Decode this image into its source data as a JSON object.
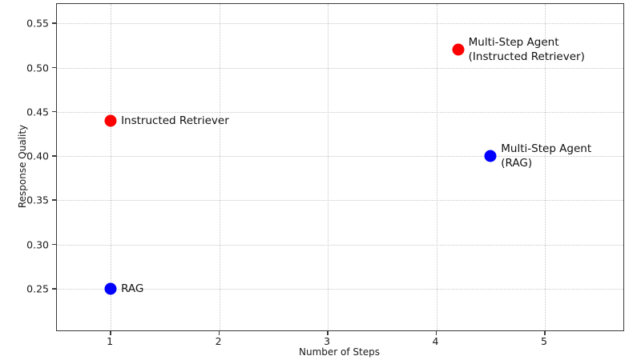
{
  "figure": {
    "background": "#ffffff",
    "spine_color": "#3a3a3a",
    "grid_color": "#c6c6c6",
    "text_color": "#1a1a1a"
  },
  "chart_data": {
    "type": "scatter",
    "title": "",
    "xlabel": "Number of Steps",
    "ylabel": "Response Quality",
    "xlim": [
      0.505,
      5.723
    ],
    "ylim": [
      0.203,
      0.572
    ],
    "x_ticks": [
      1,
      2,
      3,
      4,
      5
    ],
    "y_ticks": [
      0.55,
      0.5,
      0.45,
      0.4,
      0.35,
      0.3,
      0.25
    ],
    "grid": true,
    "grid_style": "dotted",
    "legend": "none",
    "marker_size_px": 15,
    "colors": {
      "red": "#ff0000",
      "blue": "#0000ff"
    },
    "points": [
      {
        "x": 1,
        "y": 0.44,
        "color": "red",
        "label": "Instructed Retriever",
        "label_lines": [
          "Instructed Retriever"
        ]
      },
      {
        "x": 1,
        "y": 0.25,
        "color": "blue",
        "label": "RAG",
        "label_lines": [
          "RAG"
        ]
      },
      {
        "x": 4.2,
        "y": 0.52,
        "color": "red",
        "label": "Multi-Step Agent (Instructed Retriever)",
        "label_lines": [
          "Multi-Step Agent",
          "(Instructed Retriever)"
        ]
      },
      {
        "x": 4.5,
        "y": 0.4,
        "color": "blue",
        "label": "Multi-Step Agent (RAG)",
        "label_lines": [
          "Multi-Step Agent",
          "(RAG)"
        ]
      }
    ]
  }
}
